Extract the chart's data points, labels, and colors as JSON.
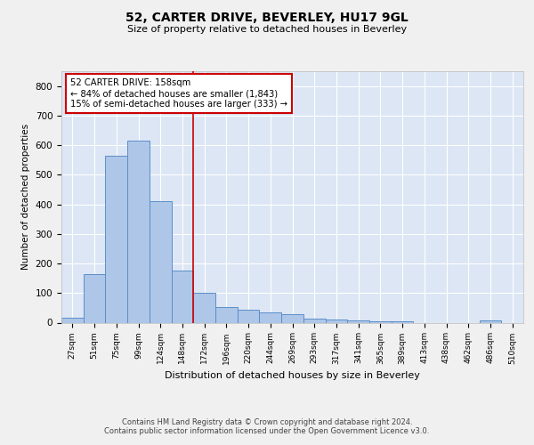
{
  "title": "52, CARTER DRIVE, BEVERLEY, HU17 9GL",
  "subtitle": "Size of property relative to detached houses in Beverley",
  "xlabel": "Distribution of detached houses by size in Beverley",
  "ylabel": "Number of detached properties",
  "bin_labels": [
    "27sqm",
    "51sqm",
    "75sqm",
    "99sqm",
    "124sqm",
    "148sqm",
    "172sqm",
    "196sqm",
    "220sqm",
    "244sqm",
    "269sqm",
    "293sqm",
    "317sqm",
    "341sqm",
    "365sqm",
    "389sqm",
    "413sqm",
    "438sqm",
    "462sqm",
    "486sqm",
    "510sqm"
  ],
  "bar_heights": [
    18,
    165,
    565,
    615,
    410,
    175,
    102,
    53,
    44,
    35,
    30,
    15,
    10,
    8,
    6,
    4,
    0,
    0,
    0,
    8,
    0
  ],
  "bar_color": "#aec6e8",
  "bar_edge_color": "#5b8fc9",
  "background_color": "#dce6f5",
  "grid_color": "#ffffff",
  "red_line_x": 5.5,
  "annotation_text": "52 CARTER DRIVE: 158sqm\n← 84% of detached houses are smaller (1,843)\n15% of semi-detached houses are larger (333) →",
  "annotation_box_color": "#ffffff",
  "annotation_box_edge": "#cc0000",
  "footer_text": "Contains HM Land Registry data © Crown copyright and database right 2024.\nContains public sector information licensed under the Open Government Licence v3.0.",
  "ylim": [
    0,
    850
  ],
  "yticks": [
    0,
    100,
    200,
    300,
    400,
    500,
    600,
    700,
    800
  ],
  "fig_facecolor": "#f0f0f0"
}
